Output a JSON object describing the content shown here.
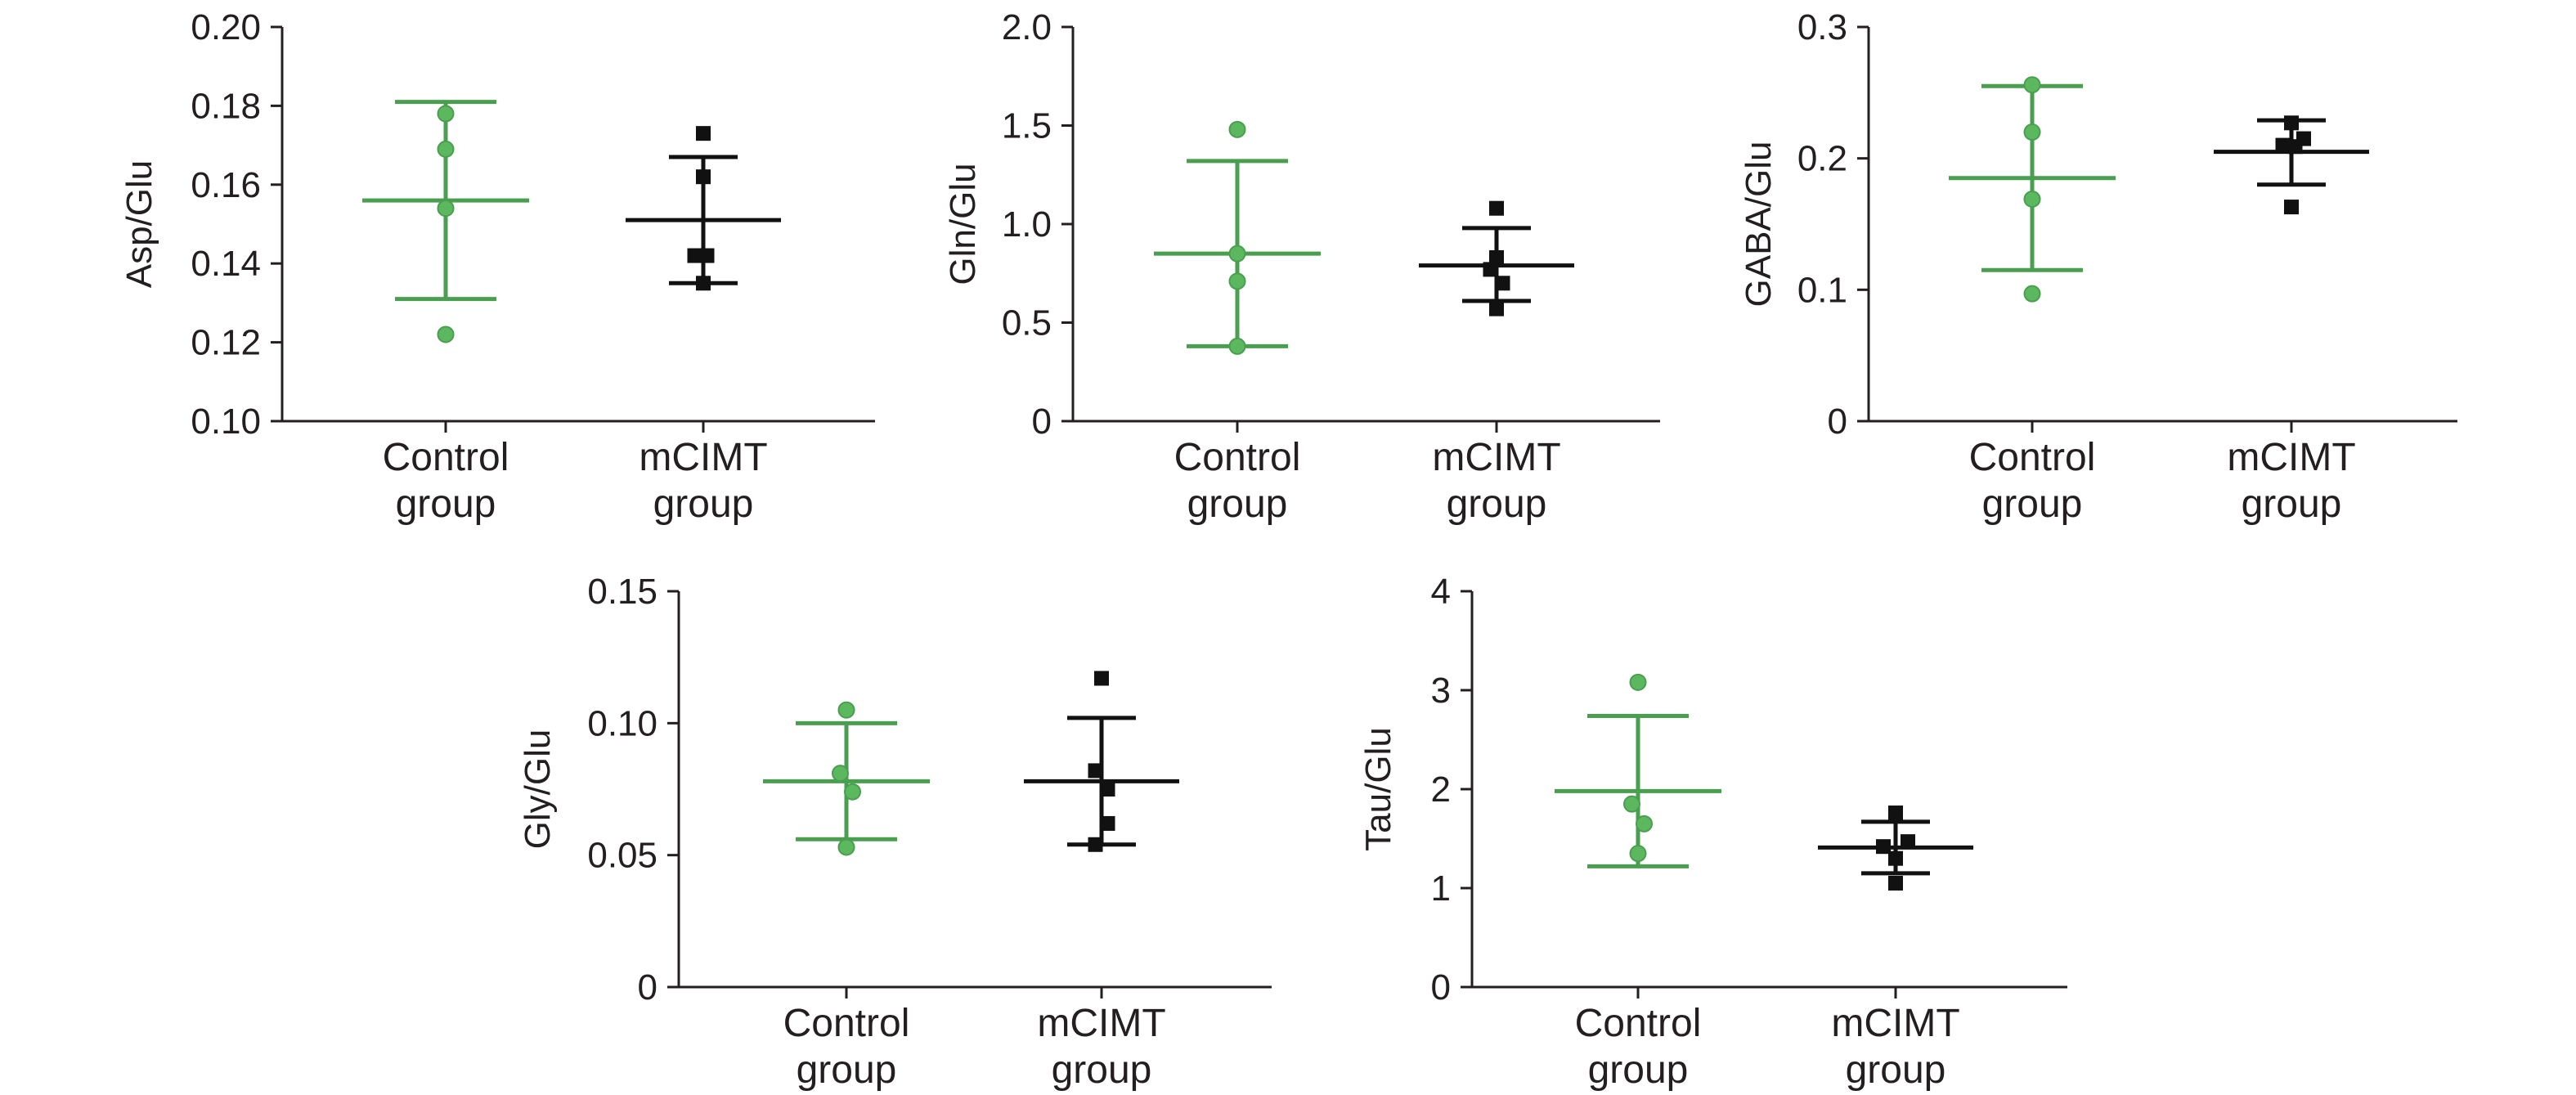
{
  "colors": {
    "control": "#4a9e4f",
    "control_fill": "#5cb85f",
    "mcimt": "#111111",
    "axis": "#231f20"
  },
  "chart_data": [
    {
      "type": "scatter",
      "ylabel": "Asp/Glu",
      "ylim": [
        0.1,
        0.2
      ],
      "yticks": [
        "0.10",
        "0.12",
        "0.14",
        "0.16",
        "0.18",
        "0.20"
      ],
      "categories": [
        {
          "line1": "Control",
          "line2": "group"
        },
        {
          "line1": "mCIMT",
          "line2": "group"
        }
      ],
      "series": [
        {
          "name": "Control group",
          "marker": "circle",
          "mean": 0.156,
          "upper": 0.181,
          "lower": 0.131,
          "points": [
            {
              "dx": 0,
              "y": 0.178
            },
            {
              "dx": 0,
              "y": 0.169
            },
            {
              "dx": 0,
              "y": 0.154
            },
            {
              "dx": 0,
              "y": 0.122
            }
          ]
        },
        {
          "name": "mCIMT group",
          "marker": "square",
          "mean": 0.151,
          "upper": 0.167,
          "lower": 0.135,
          "points": [
            {
              "dx": 0,
              "y": 0.173
            },
            {
              "dx": 0,
              "y": 0.162
            },
            {
              "dx": -0.07,
              "y": 0.142
            },
            {
              "dx": 0.03,
              "y": 0.142
            },
            {
              "dx": 0,
              "y": 0.135
            }
          ]
        }
      ]
    },
    {
      "type": "scatter",
      "ylabel": "Gln/Glu",
      "ylim": [
        0,
        2.0
      ],
      "yticks": [
        "0",
        "0.5",
        "1.0",
        "1.5",
        "2.0"
      ],
      "categories": [
        {
          "line1": "Control",
          "line2": "group"
        },
        {
          "line1": "mCIMT",
          "line2": "group"
        }
      ],
      "series": [
        {
          "name": "Control group",
          "marker": "circle",
          "mean": 0.85,
          "upper": 1.32,
          "lower": 0.38,
          "points": [
            {
              "dx": 0,
              "y": 1.48
            },
            {
              "dx": 0,
              "y": 0.85
            },
            {
              "dx": 0,
              "y": 0.71
            },
            {
              "dx": 0,
              "y": 0.38
            }
          ]
        },
        {
          "name": "mCIMT group",
          "marker": "square",
          "mean": 0.79,
          "upper": 0.98,
          "lower": 0.61,
          "points": [
            {
              "dx": 0,
              "y": 1.08
            },
            {
              "dx": 0,
              "y": 0.83
            },
            {
              "dx": -0.05,
              "y": 0.77
            },
            {
              "dx": 0.05,
              "y": 0.7
            },
            {
              "dx": 0,
              "y": 0.57
            }
          ]
        }
      ]
    },
    {
      "type": "scatter",
      "ylabel": "GABA/Glu",
      "ylim": [
        0,
        0.3
      ],
      "yticks": [
        "0",
        "0.1",
        "0.2",
        "0.3"
      ],
      "categories": [
        {
          "line1": "Control",
          "line2": "group"
        },
        {
          "line1": "mCIMT",
          "line2": "group"
        }
      ],
      "series": [
        {
          "name": "Control group",
          "marker": "circle",
          "mean": 0.185,
          "upper": 0.255,
          "lower": 0.115,
          "points": [
            {
              "dx": 0,
              "y": 0.256
            },
            {
              "dx": 0,
              "y": 0.22
            },
            {
              "dx": 0,
              "y": 0.169
            },
            {
              "dx": 0,
              "y": 0.097
            }
          ]
        },
        {
          "name": "mCIMT group",
          "marker": "square",
          "mean": 0.205,
          "upper": 0.229,
          "lower": 0.18,
          "points": [
            {
              "dx": 0,
              "y": 0.227
            },
            {
              "dx": -0.07,
              "y": 0.21
            },
            {
              "dx": 0.03,
              "y": 0.209
            },
            {
              "dx": 0.1,
              "y": 0.215
            },
            {
              "dx": 0,
              "y": 0.163
            }
          ]
        }
      ]
    },
    {
      "type": "scatter",
      "ylabel": "Gly/Glu",
      "ylim": [
        0,
        0.15
      ],
      "yticks": [
        "0",
        "0.05",
        "0.10",
        "0.15"
      ],
      "categories": [
        {
          "line1": "Control",
          "line2": "group"
        },
        {
          "line1": "mCIMT",
          "line2": "group"
        }
      ],
      "series": [
        {
          "name": "Control group",
          "marker": "circle",
          "mean": 0.078,
          "upper": 0.1,
          "lower": 0.056,
          "points": [
            {
              "dx": 0,
              "y": 0.105
            },
            {
              "dx": -0.05,
              "y": 0.081
            },
            {
              "dx": 0.05,
              "y": 0.074
            },
            {
              "dx": 0,
              "y": 0.053
            }
          ]
        },
        {
          "name": "mCIMT group",
          "marker": "square",
          "mean": 0.078,
          "upper": 0.102,
          "lower": 0.054,
          "points": [
            {
              "dx": 0,
              "y": 0.117
            },
            {
              "dx": -0.05,
              "y": 0.082
            },
            {
              "dx": 0.05,
              "y": 0.075
            },
            {
              "dx": 0.05,
              "y": 0.062
            },
            {
              "dx": -0.05,
              "y": 0.054
            }
          ]
        }
      ]
    },
    {
      "type": "scatter",
      "ylabel": "Tau/Glu",
      "ylim": [
        0,
        4
      ],
      "yticks": [
        "0",
        "1",
        "2",
        "3",
        "4"
      ],
      "categories": [
        {
          "line1": "Control",
          "line2": "group"
        },
        {
          "line1": "mCIMT",
          "line2": "group"
        }
      ],
      "series": [
        {
          "name": "Control group",
          "marker": "circle",
          "mean": 1.98,
          "upper": 2.74,
          "lower": 1.22,
          "points": [
            {
              "dx": 0,
              "y": 3.08
            },
            {
              "dx": -0.05,
              "y": 1.85
            },
            {
              "dx": 0.05,
              "y": 1.65
            },
            {
              "dx": 0,
              "y": 1.35
            }
          ]
        },
        {
          "name": "mCIMT group",
          "marker": "square",
          "mean": 1.41,
          "upper": 1.67,
          "lower": 1.15,
          "points": [
            {
              "dx": 0,
              "y": 1.76
            },
            {
              "dx": -0.1,
              "y": 1.42
            },
            {
              "dx": 0.1,
              "y": 1.47
            },
            {
              "dx": 0,
              "y": 1.3
            },
            {
              "dx": 0,
              "y": 1.05
            }
          ]
        }
      ]
    }
  ]
}
